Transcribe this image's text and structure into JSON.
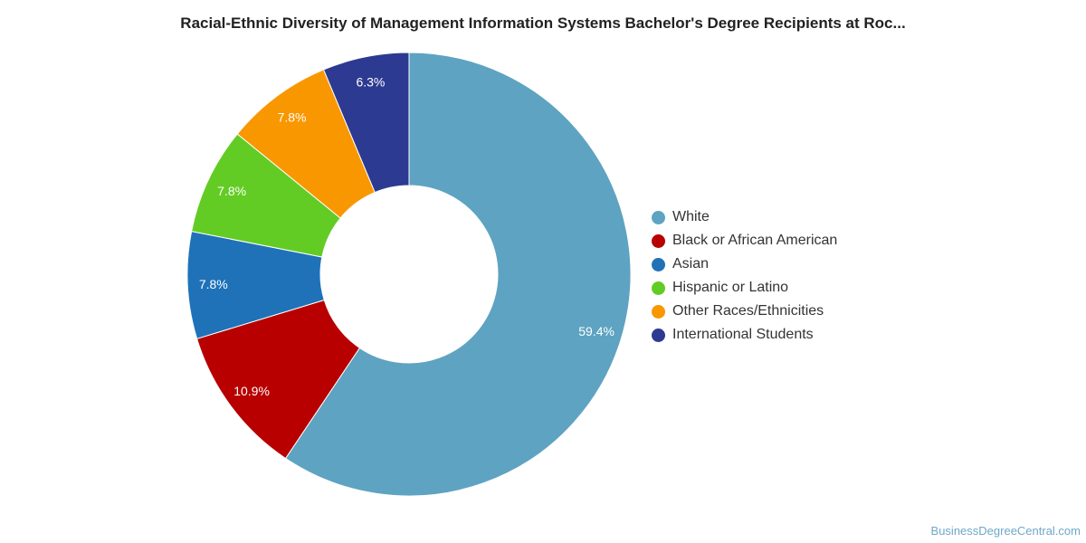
{
  "chart_data": {
    "type": "pie",
    "title": "Racial-Ethnic Diversity of Management Information Systems Bachelor's Degree Recipients at Roc...",
    "slices": [
      {
        "name": "White",
        "value": 59.4,
        "label": "59.4%",
        "color": "#5ea3c1"
      },
      {
        "name": "Black or African American",
        "value": 10.9,
        "label": "10.9%",
        "color": "#b80000"
      },
      {
        "name": "Asian",
        "value": 7.8,
        "label": "7.8%",
        "color": "#1f72b8"
      },
      {
        "name": "Hispanic or Latino",
        "value": 7.8,
        "label": "7.8%",
        "color": "#62cc24"
      },
      {
        "name": "Other Races/Ethnicities",
        "value": 7.8,
        "label": "7.8%",
        "color": "#f99700"
      },
      {
        "name": "International Students",
        "value": 6.3,
        "label": "6.3%",
        "color": "#2d3a91"
      }
    ],
    "legend_position": "right"
  },
  "footer": {
    "credit": "BusinessDegreeCentral.com"
  }
}
